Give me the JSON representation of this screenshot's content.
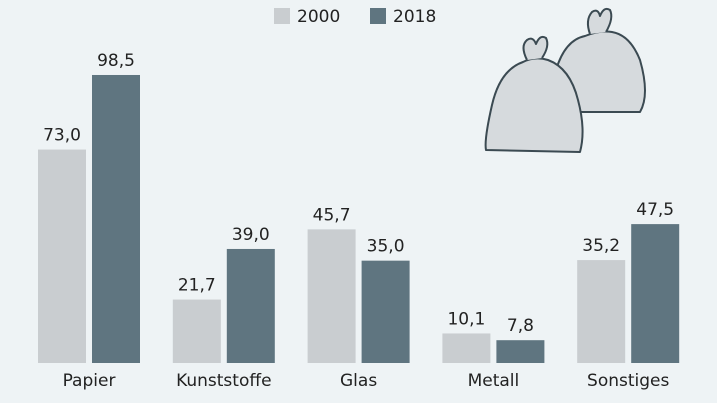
{
  "chart_data": {
    "type": "bar",
    "categories": [
      "Papier",
      "Kunststoffe",
      "Glas",
      "Metall",
      "Sonstiges"
    ],
    "series": [
      {
        "name": "2000",
        "color": "#c9cdd0",
        "values": [
          73.0,
          21.7,
          45.7,
          10.1,
          35.2
        ],
        "value_labels": [
          "73,0",
          "21,7",
          "45,7",
          "10,1",
          "35,2"
        ]
      },
      {
        "name": "2018",
        "color": "#5f7580",
        "values": [
          98.5,
          39.0,
          35.0,
          7.8,
          47.5
        ],
        "value_labels": [
          "98,5",
          "39,0",
          "35,0",
          "7,8",
          "47,5"
        ]
      }
    ],
    "legend": "top"
  }
}
